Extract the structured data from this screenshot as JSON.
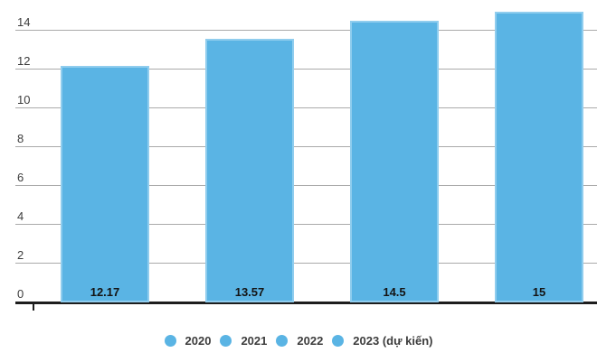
{
  "chart_data": {
    "type": "bar",
    "categories": [
      "2020",
      "2021",
      "2022",
      "2023 (dự kiến)"
    ],
    "values": [
      12.17,
      13.57,
      14.5,
      15
    ],
    "value_labels": [
      "12.17",
      "13.57",
      "14.5",
      "15"
    ],
    "y_ticks": [
      0,
      2,
      4,
      6,
      8,
      10,
      12,
      14
    ],
    "y_tick_labels": [
      "0",
      "2",
      "4",
      "6",
      "8",
      "10",
      "12",
      "14"
    ],
    "ylim": [
      0,
      15.6
    ],
    "xlabel": "",
    "ylabel": "",
    "grid": "horizontal",
    "legend_position": "bottom",
    "bar_color": "#5ab4e4",
    "bar_stroke_color": "#90cdee",
    "gridline_color": "#aaaaaa",
    "axis_color": "#1d1d1d",
    "value_label_color": "#141414",
    "tick_label_color": "#3d3d3d"
  }
}
